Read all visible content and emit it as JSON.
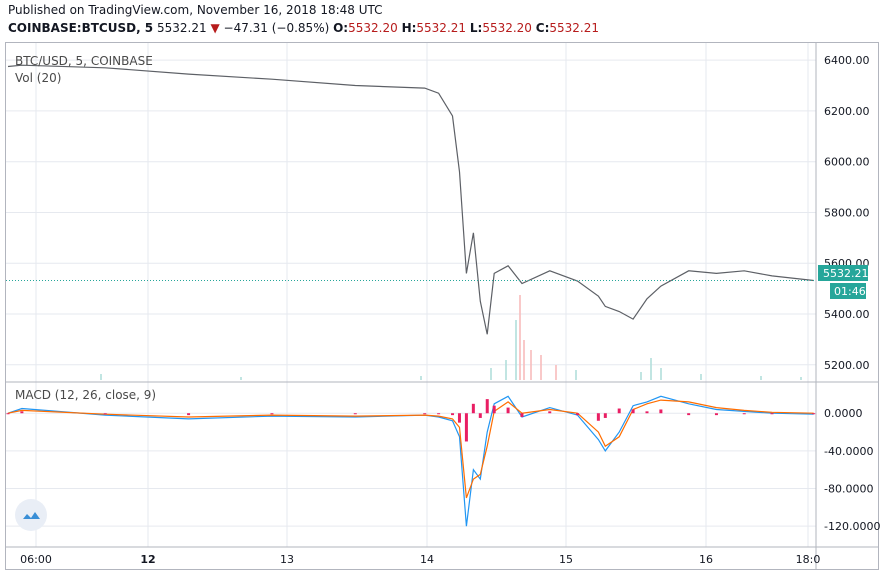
{
  "header": {
    "published": "Published on TradingView.com, November 16, 2018 18:48 UTC",
    "symbol": "COINBASE:BTCUSD, 5",
    "last": "5532.21",
    "arrow": "▼",
    "change": "−47.31 (−0.85%)",
    "o_label": "O:",
    "o_value": "5532.20",
    "h_label": "H:",
    "h_value": "5532.21",
    "l_label": "L:",
    "l_value": "5532.20",
    "c_label": "C:",
    "c_value": "5532.21"
  },
  "price_pane": {
    "legend_symbol": "BTC/USD, 5, COINBASE",
    "legend_volume": "Vol (20)",
    "price_ticks": [
      "6400.00",
      "6200.00",
      "6000.00",
      "5800.00",
      "5600.00",
      "5400.00",
      "5200.00"
    ],
    "last_price_badge": "5532.21",
    "countdown_badge": "01:46"
  },
  "macd_pane": {
    "legend": "MACD (12, 26, close, 9)",
    "ticks": [
      "0.0000",
      "-40.0000",
      "-80.0000",
      "-120.0000"
    ]
  },
  "time_axis": {
    "ticks": [
      "06:00",
      "12",
      "13",
      "14",
      "15",
      "16",
      "18:0"
    ]
  },
  "colors": {
    "up": "#26a69a",
    "down": "#ef5350",
    "macd_line": "#2196f3",
    "signal_line": "#ff6d00",
    "histogram": "#e91e63",
    "last_price": "#26a69a",
    "grid": "#e6e9ef"
  },
  "chart_data": [
    {
      "type": "line",
      "title": "BTC/USD, 5, COINBASE",
      "xlabel": "",
      "ylabel": "",
      "ylim": [
        5140,
        6440
      ],
      "x_ticks": [
        "06:00",
        "12",
        "13",
        "14",
        "15",
        "16",
        "18:0"
      ],
      "x": [
        "11-11 22:00",
        "11-12 00:00",
        "11-12 12:00",
        "11-13 00:00",
        "11-13 12:00",
        "11-14 00:00",
        "11-14 10:00",
        "11-14 12:00",
        "11-14 14:00",
        "11-14 15:00",
        "11-14 16:00",
        "11-14 17:00",
        "11-14 18:00",
        "11-14 19:00",
        "11-14 20:00",
        "11-14 22:00",
        "11-15 00:00",
        "11-15 04:00",
        "11-15 08:00",
        "11-15 11:00",
        "11-15 12:00",
        "11-15 14:00",
        "11-15 16:00",
        "11-15 18:00",
        "11-15 20:00",
        "11-16 00:00",
        "11-16 04:00",
        "11-16 08:00",
        "11-16 12:00",
        "11-16 18:00"
      ],
      "series": [
        {
          "values": [
            6375,
            6380,
            6370,
            6345,
            6325,
            6300,
            6290,
            6270,
            6180,
            5960,
            5560,
            5720,
            5450,
            5320,
            5560,
            5590,
            5520,
            5570,
            5530,
            5470,
            5430,
            5410,
            5380,
            5460,
            5510,
            5570,
            5560,
            5570,
            5550,
            5532
          ]
        }
      ],
      "last_price": 5532.21
    },
    {
      "type": "line",
      "title": "MACD (12, 26, close, 9)",
      "ylim": [
        -140,
        30
      ],
      "x": [
        "11-11 22:00",
        "11-12 00:00",
        "11-12 12:00",
        "11-13 00:00",
        "11-13 12:00",
        "11-14 00:00",
        "11-14 10:00",
        "11-14 12:00",
        "11-14 14:00",
        "11-14 15:00",
        "11-14 16:00",
        "11-14 17:00",
        "11-14 18:00",
        "11-14 19:00",
        "11-14 20:00",
        "11-14 22:00",
        "11-15 00:00",
        "11-15 04:00",
        "11-15 08:00",
        "11-15 11:00",
        "11-15 12:00",
        "11-15 14:00",
        "11-15 16:00",
        "11-15 18:00",
        "11-15 20:00",
        "11-16 00:00",
        "11-16 04:00",
        "11-16 08:00",
        "11-16 12:00",
        "11-16 18:00"
      ],
      "series": [
        {
          "name": "MACD",
          "values": [
            0,
            5,
            -2,
            -6,
            -3,
            -4,
            -2,
            -4,
            -8,
            -25,
            -120,
            -60,
            -70,
            -20,
            10,
            18,
            -4,
            6,
            -2,
            -28,
            -40,
            -20,
            8,
            12,
            18,
            10,
            4,
            2,
            0,
            -1
          ]
        },
        {
          "name": "Signal",
          "values": [
            0,
            3,
            -1,
            -4,
            -2,
            -3,
            -2,
            -3,
            -6,
            -15,
            -90,
            -70,
            -65,
            -35,
            2,
            12,
            0,
            4,
            0,
            -20,
            -35,
            -25,
            4,
            10,
            14,
            12,
            6,
            3,
            1,
            0
          ]
        }
      ]
    }
  ]
}
